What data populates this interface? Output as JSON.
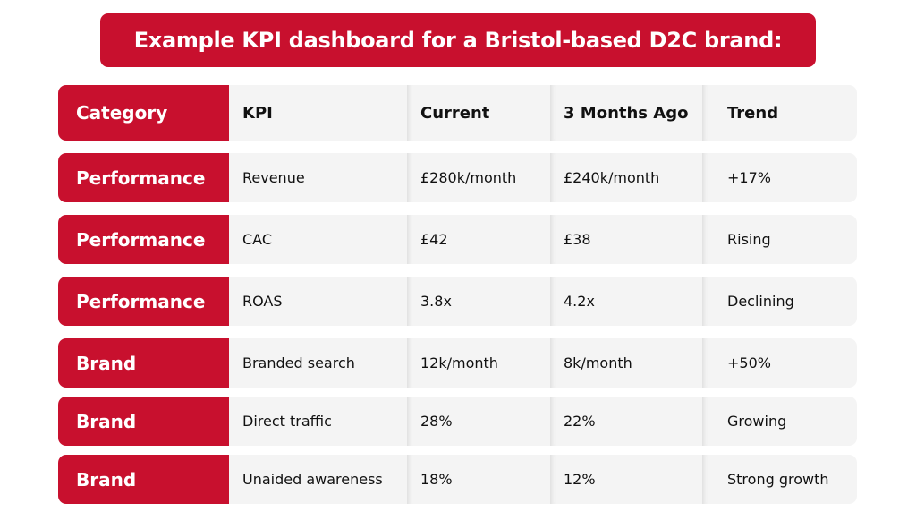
{
  "title": "Example KPI dashboard for a Bristol-based D2C brand:",
  "colors": {
    "accent": "#c8102e",
    "cell_bg": "#f4f4f4"
  },
  "headers": [
    "Category",
    "KPI",
    "Current",
    "3 Months Ago",
    "Trend"
  ],
  "rows": [
    [
      "Performance",
      "Revenue",
      "£280k/month",
      "£240k/month",
      "+17%"
    ],
    [
      "Performance",
      "CAC",
      "£42",
      "£38",
      "Rising"
    ],
    [
      "Performance",
      "ROAS",
      "3.8x",
      "4.2x",
      "Declining"
    ],
    [
      "Brand",
      "Branded search",
      "12k/month",
      "8k/month",
      "+50%"
    ],
    [
      "Brand",
      "Direct traffic",
      "28%",
      "22%",
      "Growing"
    ],
    [
      "Brand",
      "Unaided awareness",
      "18%",
      "12%",
      "Strong growth"
    ]
  ]
}
